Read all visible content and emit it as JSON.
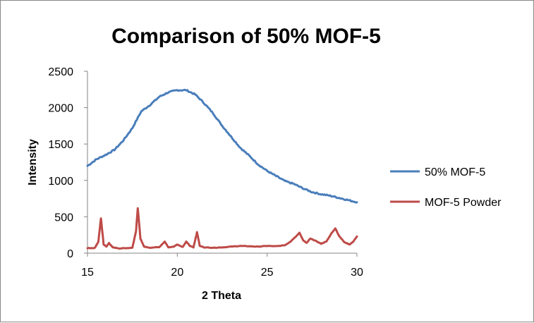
{
  "chart_data": {
    "type": "line",
    "title": "Comparison of 50% MOF-5",
    "xlabel": "2 Theta",
    "ylabel": "Intensity",
    "xlim": [
      15,
      30
    ],
    "ylim": [
      0,
      2500
    ],
    "x_ticks": [
      15,
      20,
      25,
      30
    ],
    "y_ticks": [
      0,
      500,
      1000,
      1500,
      2000,
      2500
    ],
    "grid": false,
    "legend_position": "right",
    "series": [
      {
        "name": "50% MOF-5",
        "color": "#4a7ebb",
        "x": [
          15,
          15.5,
          16,
          16.5,
          17,
          17.5,
          18,
          18.5,
          19,
          19.5,
          20,
          20.5,
          21,
          21.5,
          22,
          22.5,
          23,
          23.5,
          24,
          24.5,
          25,
          25.5,
          26,
          26.5,
          27,
          27.5,
          28,
          28.5,
          29,
          29.5,
          30
        ],
        "y": [
          1200,
          1290,
          1350,
          1420,
          1550,
          1720,
          1950,
          2040,
          2150,
          2210,
          2240,
          2240,
          2180,
          2060,
          1920,
          1750,
          1600,
          1450,
          1340,
          1220,
          1130,
          1060,
          990,
          950,
          890,
          840,
          810,
          790,
          760,
          730,
          700
        ]
      },
      {
        "name": "MOF-5 Powder",
        "color": "#be4b48",
        "x": [
          15,
          15.4,
          15.6,
          15.75,
          15.9,
          16.05,
          16.2,
          16.4,
          16.8,
          17.2,
          17.5,
          17.7,
          17.8,
          17.95,
          18.15,
          18.5,
          19.0,
          19.3,
          19.5,
          19.8,
          20.0,
          20.3,
          20.5,
          20.7,
          20.9,
          21.1,
          21.25,
          21.5,
          22,
          22.5,
          23,
          23.5,
          24,
          24.5,
          25,
          25.5,
          26,
          26.3,
          26.6,
          26.8,
          27.0,
          27.2,
          27.4,
          27.7,
          28.0,
          28.3,
          28.6,
          28.8,
          29.0,
          29.3,
          29.6,
          29.8,
          30
        ],
        "y": [
          70,
          70,
          150,
          480,
          120,
          90,
          140,
          80,
          65,
          70,
          75,
          300,
          620,
          200,
          90,
          75,
          85,
          160,
          80,
          90,
          120,
          85,
          160,
          100,
          80,
          290,
          100,
          80,
          75,
          80,
          90,
          100,
          95,
          90,
          100,
          95,
          110,
          160,
          230,
          280,
          180,
          140,
          200,
          170,
          130,
          160,
          280,
          340,
          240,
          150,
          120,
          160,
          230
        ]
      }
    ]
  }
}
